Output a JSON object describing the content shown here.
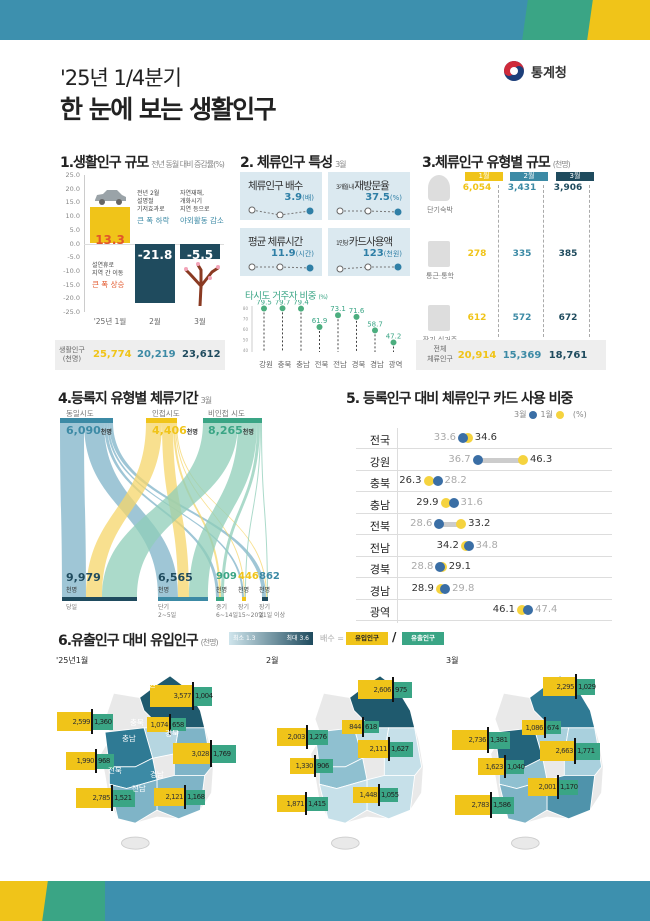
{
  "colors": {
    "band_blue": "#3d90ae",
    "band_green": "#3aa585",
    "band_yellow": "#f0c419",
    "dark": "#1f4b5e",
    "mid": "#3c8aa5",
    "yellow": "#f0c419",
    "green": "#3aa585"
  },
  "header": {
    "subtitle": "'25년 1/4분기",
    "title": "한 눈에 보는 생활인구",
    "org": "통계청"
  },
  "s1": {
    "title": "1.생활인구 규모",
    "unit": "전년 동월 대비 증감률(%)",
    "chart_data": {
      "type": "bar",
      "categories": [
        "'25년 1월",
        "2월",
        "3월"
      ],
      "values": [
        13.3,
        -21.8,
        -5.5
      ],
      "ylim": [
        -25,
        25
      ],
      "ticks": [
        "25.0",
        "20.0",
        "15.0",
        "10.0",
        "5.0",
        "0.0",
        "-5.0",
        "-10.0",
        "-15.0",
        "-20.0",
        "-25.0"
      ]
    },
    "bar_labels": [
      "13.3",
      "-21.8",
      "-5.5"
    ],
    "notes": [
      {
        "text": "설연휴로\n지역 간 이동",
        "emph": "큰 폭 상승"
      },
      {
        "text": "전년 2월\n설명절\n기저효과로",
        "emph": "큰 폭 하락"
      },
      {
        "text": "자연재해,\n개화시기\n지연 등으로",
        "emph": "야외활동 감소"
      }
    ],
    "pop_label": "생활인구",
    "pop_unit": "(천명)",
    "pop": [
      "25,774",
      "20,219",
      "23,612"
    ]
  },
  "s2": {
    "title": "2. 체류인구 특성",
    "month": "3월",
    "kpis": [
      {
        "pre": "",
        "label": "체류인구 배수",
        "value": "3.9",
        "unit": "(배)"
      },
      {
        "pre": "3개월 내 ",
        "label": "재방문율",
        "value": "37.5",
        "unit": "(%)"
      },
      {
        "pre": "",
        "label": "평균 체류시간",
        "value": "11.9",
        "unit": "(시간)"
      },
      {
        "pre": "1인당 ",
        "label": "카드사용액",
        "value": "123",
        "unit": "(천원)"
      }
    ],
    "other": {
      "title": "타시도 거주자 비중",
      "unit": "(%)",
      "chart_data": {
        "type": "scatter",
        "categories": [
          "강원",
          "충북",
          "충남",
          "전북",
          "전남",
          "경북",
          "경남",
          "광역"
        ],
        "values": [
          79.5,
          79.7,
          79.4,
          61.9,
          73.1,
          71.6,
          58.7,
          47.2
        ],
        "ylim": [
          40,
          80
        ],
        "ticks": [
          "80",
          "70",
          "60",
          "50",
          "40"
        ]
      },
      "labels": [
        "79.5",
        "79.7",
        "79.4",
        "61.9",
        "73.1",
        "71.6",
        "58.7",
        "47.2"
      ]
    }
  },
  "s3": {
    "title": "3.체류인구 유형별 규모",
    "unit": "(천명)",
    "months": [
      "1월",
      "2월",
      "3월"
    ],
    "rows": [
      {
        "label": "단기숙박",
        "values": [
          "6,054",
          "3,431",
          "3,906"
        ]
      },
      {
        "label": "통근·통학",
        "values": [
          "278",
          "335",
          "385"
        ]
      },
      {
        "label": "장기 실거주",
        "values": [
          "612",
          "572",
          "672"
        ]
      }
    ],
    "total": {
      "label1": "전체",
      "label2": "체류인구",
      "values": [
        "20,914",
        "15,369",
        "18,761"
      ]
    }
  },
  "s4": {
    "title": "4.등록지 유형별 체류기간",
    "month": "3월",
    "unit": "천명",
    "sources": [
      {
        "label": "동일시도",
        "value": "6,090"
      },
      {
        "label": "인접시도",
        "value": "4,406"
      },
      {
        "label": "비인접 시도",
        "value": "8,265"
      }
    ],
    "targets": [
      {
        "label": "당일",
        "sub": "",
        "value": "9,979"
      },
      {
        "label": "단기",
        "sub": "2~5일",
        "value": "6,565"
      },
      {
        "label": "중기",
        "sub": "6~14일",
        "value": "909"
      },
      {
        "label": "장기",
        "sub": "15~20일",
        "value": "446"
      },
      {
        "label": "장기",
        "sub": "21일 이상",
        "value": "862"
      }
    ]
  },
  "s5": {
    "title": "5. 등록인구 대비 체류인구 카드 사용 비중",
    "legend": {
      "mar": "3월",
      "jan": "1월",
      "unit": "(%)"
    },
    "chart_data": {
      "type": "dumbbell",
      "categories": [
        "전국",
        "강원",
        "충북",
        "충남",
        "전북",
        "전남",
        "경북",
        "경남",
        "광역"
      ],
      "series": [
        {
          "name": "3월",
          "values": [
            33.6,
            36.7,
            28.2,
            31.6,
            28.6,
            34.8,
            28.8,
            29.8,
            47.4
          ]
        },
        {
          "name": "1월",
          "values": [
            34.6,
            46.3,
            26.3,
            29.9,
            33.2,
            34.2,
            29.1,
            28.9,
            46.1
          ]
        }
      ]
    }
  },
  "s6": {
    "title": "6.유출인구 대비 유입인구",
    "unit": "(천명)",
    "scale_min": "최소 1.3",
    "scale_max": "최대 3.6",
    "ratio": "배수 =",
    "inflow": "유입인구",
    "slash": "/",
    "outflow": "유출인구",
    "maps": [
      {
        "label": "'25년1월",
        "regions": [
          {
            "name": "강원",
            "in": "3,577",
            "out": "1,004"
          },
          {
            "name": "충남",
            "in": "2,599",
            "out": "1,360"
          },
          {
            "name": "충북",
            "in": "1,074",
            "out": "658"
          },
          {
            "name": "경북",
            "in": "3,028",
            "out": "1,769"
          },
          {
            "name": "전북",
            "in": "1,990",
            "out": "968"
          },
          {
            "name": "전남",
            "in": "2,785",
            "out": "1,521"
          },
          {
            "name": "경남",
            "in": "2,121",
            "out": "1,168"
          }
        ]
      },
      {
        "label": "2월",
        "regions": [
          {
            "name": "강원",
            "in": "2,606",
            "out": "975"
          },
          {
            "name": "충남",
            "in": "2,003",
            "out": "1,276"
          },
          {
            "name": "충북",
            "in": "844",
            "out": "618"
          },
          {
            "name": "경북",
            "in": "2,111",
            "out": "1,627"
          },
          {
            "name": "전북",
            "in": "1,330",
            "out": "906"
          },
          {
            "name": "전남",
            "in": "1,871",
            "out": "1,415"
          },
          {
            "name": "경남",
            "in": "1,448",
            "out": "1,055"
          }
        ]
      },
      {
        "label": "3월",
        "regions": [
          {
            "name": "강원",
            "in": "2,295",
            "out": "1,029"
          },
          {
            "name": "충남",
            "in": "2,736",
            "out": "1,381"
          },
          {
            "name": "충북",
            "in": "1,086",
            "out": "674"
          },
          {
            "name": "경북",
            "in": "2,663",
            "out": "1,771"
          },
          {
            "name": "전북",
            "in": "1,623",
            "out": "1,040"
          },
          {
            "name": "전남",
            "in": "2,783",
            "out": "1,586"
          },
          {
            "name": "경남",
            "in": "2,001",
            "out": "1,170"
          }
        ]
      }
    ]
  }
}
